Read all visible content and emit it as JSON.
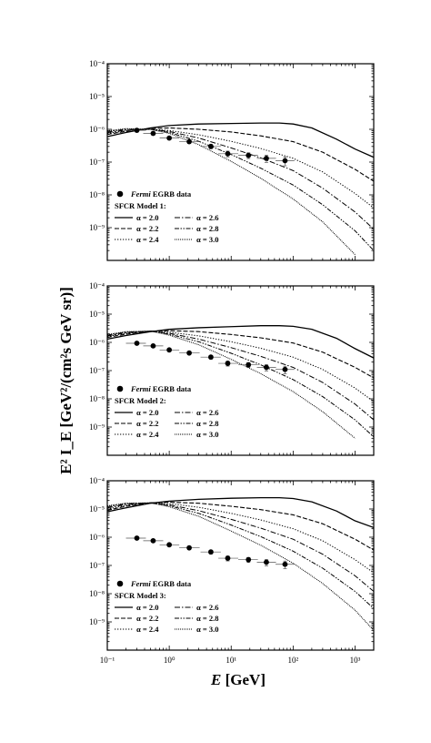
{
  "figure": {
    "xlabel_italic": "E",
    "xlabel_rest": " [GeV]",
    "ylabel": "E² I_E [GeV²/(cm²s GeV sr)]"
  },
  "chart_data": [
    {
      "type": "line",
      "panel": "Model 1",
      "xscale": "log",
      "yscale": "log",
      "xlim": [
        0.1,
        2000
      ],
      "ylim": [
        1e-10,
        0.0001
      ],
      "x_ticks": [
        "10⁻¹",
        "10⁰",
        "10¹",
        "10²",
        "10³"
      ],
      "y_ticks": [
        "10⁻⁹",
        "10⁻⁸",
        "10⁻⁷",
        "10⁻⁶",
        "10⁻⁵",
        "10⁻⁴"
      ],
      "legend": {
        "position": "bottom-left",
        "data_label_italic": "Fermi",
        "data_label_rest": " EGRB data",
        "model_label": "SFCR Model 1:"
      },
      "points": {
        "name": "Fermi EGRB data",
        "x": [
          0.3,
          0.55,
          1.0,
          2.1,
          4.7,
          8.8,
          19,
          37,
          74
        ],
        "y": [
          9.3e-07,
          7.5e-07,
          5.4e-07,
          4.2e-07,
          3e-07,
          1.8e-07,
          1.6e-07,
          1.3e-07,
          1.1e-07
        ],
        "xerr_lo": [
          0.2,
          0.38,
          0.7,
          1.45,
          3.2,
          6.2,
          13,
          26,
          52
        ],
        "xerr_hi": [
          0.42,
          0.8,
          1.45,
          3.1,
          6.8,
          13,
          27,
          53,
          105
        ],
        "yerr_frac": [
          0.12,
          0.12,
          0.12,
          0.12,
          0.15,
          0.2,
          0.2,
          0.25,
          0.3
        ]
      },
      "series": [
        {
          "name": "α = 2.0",
          "x": [
            0.1,
            0.2,
            0.5,
            1,
            3,
            10,
            30,
            60,
            100,
            200,
            500,
            1000,
            2000
          ],
          "y": [
            6e-07,
            8e-07,
            1.1e-06,
            1.3e-06,
            1.45e-06,
            1.5e-06,
            1.55e-06,
            1.55e-06,
            1.45e-06,
            1.1e-06,
            5e-07,
            2.5e-07,
            1.4e-07
          ]
        },
        {
          "name": "α = 2.2",
          "x": [
            0.1,
            0.2,
            0.5,
            1,
            3,
            10,
            30,
            100,
            300,
            1000,
            2000
          ],
          "y": [
            7e-07,
            8.7e-07,
            1.05e-06,
            1.1e-06,
            1e-06,
            8.3e-07,
            6.3e-07,
            4.2e-07,
            2e-07,
            6e-08,
            2.6e-08
          ]
        },
        {
          "name": "α = 2.4",
          "x": [
            0.1,
            0.2,
            0.5,
            1,
            3,
            10,
            30,
            100,
            300,
            1000,
            2000
          ],
          "y": [
            7.5e-07,
            9e-07,
            1e-06,
            9.2e-07,
            6.8e-07,
            4.3e-07,
            2.6e-07,
            1.3e-07,
            5e-08,
            1.1e-08,
            4e-09
          ]
        },
        {
          "name": "α = 2.6",
          "x": [
            0.1,
            0.2,
            0.5,
            1,
            3,
            10,
            30,
            100,
            300,
            1000,
            2000
          ],
          "y": [
            8e-07,
            9.5e-07,
            1e-06,
            8.6e-07,
            5.4e-07,
            2.7e-07,
            1.35e-07,
            5.5e-08,
            1.6e-08,
            3e-09,
            9e-10
          ]
        },
        {
          "name": "α = 2.8",
          "x": [
            0.1,
            0.2,
            0.5,
            1,
            3,
            10,
            30,
            100,
            300,
            1000,
            2000
          ],
          "y": [
            8.5e-07,
            1e-06,
            1e-06,
            8e-07,
            4.3e-07,
            1.7e-07,
            6.5e-08,
            2e-08,
            5e-09,
            8e-10,
            2e-10
          ]
        },
        {
          "name": "α = 3.0",
          "x": [
            0.1,
            0.2,
            0.5,
            1,
            3,
            10,
            30,
            100,
            300,
            1000
          ],
          "y": [
            9e-07,
            1.05e-06,
            1e-06,
            7.5e-07,
            3.4e-07,
            1.05e-07,
            3.2e-08,
            7.5e-09,
            1.5e-09,
            1.5e-10
          ]
        }
      ]
    },
    {
      "type": "line",
      "panel": "Model 2",
      "xscale": "log",
      "yscale": "log",
      "xlim": [
        0.1,
        2000
      ],
      "ylim": [
        1e-10,
        0.0001
      ],
      "x_ticks": [
        "10⁻¹",
        "10⁰",
        "10¹",
        "10²",
        "10³"
      ],
      "y_ticks": [
        "10⁻⁹",
        "10⁻⁸",
        "10⁻⁷",
        "10⁻⁶",
        "10⁻⁵",
        "10⁻⁴"
      ],
      "legend": {
        "position": "bottom-left",
        "data_label_italic": "Fermi",
        "data_label_rest": " EGRB data",
        "model_label": "SFCR Model 2:"
      },
      "points": {
        "name": "Fermi EGRB data",
        "x": [
          0.3,
          0.55,
          1.0,
          2.1,
          4.7,
          8.8,
          19,
          37,
          74
        ],
        "y": [
          9.3e-07,
          7.5e-07,
          5.4e-07,
          4.2e-07,
          3e-07,
          1.8e-07,
          1.6e-07,
          1.3e-07,
          1.1e-07
        ],
        "xerr_lo": [
          0.2,
          0.38,
          0.7,
          1.45,
          3.2,
          6.2,
          13,
          26,
          52
        ],
        "xerr_hi": [
          0.42,
          0.8,
          1.45,
          3.1,
          6.8,
          13,
          27,
          53,
          105
        ],
        "yerr_frac": [
          0.12,
          0.12,
          0.12,
          0.12,
          0.15,
          0.2,
          0.2,
          0.25,
          0.3
        ]
      },
      "series": [
        {
          "name": "α = 2.0",
          "x": [
            0.1,
            0.2,
            0.5,
            1,
            3,
            10,
            30,
            60,
            100,
            200,
            500,
            1000,
            2000
          ],
          "y": [
            1.3e-06,
            1.75e-06,
            2.4e-06,
            2.9e-06,
            3.3e-06,
            3.6e-06,
            3.9e-06,
            3.9e-06,
            3.7e-06,
            2.9e-06,
            1.4e-06,
            6e-07,
            2.8e-07
          ]
        },
        {
          "name": "α = 2.2",
          "x": [
            0.1,
            0.2,
            0.5,
            1,
            3,
            10,
            30,
            100,
            300,
            1000,
            2000
          ],
          "y": [
            1.5e-06,
            1.95e-06,
            2.5e-06,
            2.6e-06,
            2.4e-06,
            1.9e-06,
            1.45e-06,
            9.5e-07,
            4.5e-07,
            1.3e-07,
            5.5e-08
          ]
        },
        {
          "name": "α = 2.4",
          "x": [
            0.1,
            0.2,
            0.5,
            1,
            3,
            10,
            30,
            100,
            300,
            1000,
            2000
          ],
          "y": [
            1.6e-06,
            2.1e-06,
            2.5e-06,
            2.3e-06,
            1.7e-06,
            1.05e-06,
            6.2e-07,
            3e-07,
            1.1e-07,
            2.4e-08,
            8e-09
          ]
        },
        {
          "name": "α = 2.6",
          "x": [
            0.1,
            0.2,
            0.5,
            1,
            3,
            10,
            30,
            100,
            300,
            1000,
            2000
          ],
          "y": [
            1.7e-06,
            2.2e-06,
            2.5e-06,
            2.1e-06,
            1.3e-06,
            6.5e-07,
            3.2e-07,
            1.3e-07,
            3.8e-08,
            6.5e-09,
            1.8e-09
          ]
        },
        {
          "name": "α = 2.8",
          "x": [
            0.1,
            0.2,
            0.5,
            1,
            3,
            10,
            30,
            100,
            300,
            1000,
            2000
          ],
          "y": [
            1.8e-06,
            2.3e-06,
            2.5e-06,
            1.95e-06,
            1.05e-06,
            4.1e-07,
            1.6e-07,
            4.8e-08,
            1.2e-08,
            1.8e-09,
            4.5e-10
          ]
        },
        {
          "name": "α = 3.0",
          "x": [
            0.1,
            0.2,
            0.5,
            1,
            3,
            10,
            30,
            100,
            300,
            1000
          ],
          "y": [
            1.9e-06,
            2.4e-06,
            2.5e-06,
            1.8e-06,
            8.2e-07,
            2.5e-07,
            7.8e-08,
            1.8e-08,
            3.5e-09,
            4e-10
          ]
        }
      ]
    },
    {
      "type": "line",
      "panel": "Model 3",
      "xscale": "log",
      "yscale": "log",
      "xlim": [
        0.1,
        2000
      ],
      "ylim": [
        1e-10,
        0.0001
      ],
      "x_ticks": [
        "10⁻¹",
        "10⁰",
        "10¹",
        "10²",
        "10³"
      ],
      "y_ticks": [
        "10⁻⁹",
        "10⁻⁸",
        "10⁻⁷",
        "10⁻⁶",
        "10⁻⁵",
        "10⁻⁴"
      ],
      "legend": {
        "position": "bottom-left",
        "data_label_italic": "Fermi",
        "data_label_rest": " EGRB data",
        "model_label": "SFCR Model 3:"
      },
      "points": {
        "name": "Fermi EGRB data",
        "x": [
          0.3,
          0.55,
          1.0,
          2.1,
          4.7,
          8.8,
          19,
          37,
          74
        ],
        "y": [
          9.3e-07,
          7.5e-07,
          5.4e-07,
          4.2e-07,
          3e-07,
          1.8e-07,
          1.6e-07,
          1.3e-07,
          1.1e-07
        ],
        "xerr_lo": [
          0.2,
          0.38,
          0.7,
          1.45,
          3.2,
          6.2,
          13,
          26,
          52
        ],
        "xerr_hi": [
          0.42,
          0.8,
          1.45,
          3.1,
          6.8,
          13,
          27,
          53,
          105
        ],
        "yerr_frac": [
          0.12,
          0.12,
          0.12,
          0.12,
          0.15,
          0.2,
          0.2,
          0.25,
          0.3
        ]
      },
      "series": [
        {
          "name": "α = 2.0",
          "x": [
            0.1,
            0.2,
            0.5,
            1,
            3,
            10,
            30,
            60,
            100,
            200,
            500,
            1000,
            2000
          ],
          "y": [
            8e-06,
            1.1e-05,
            1.6e-05,
            1.9e-05,
            2.2e-05,
            2.4e-05,
            2.5e-05,
            2.5e-05,
            2.35e-05,
            1.8e-05,
            8.5e-06,
            3.8e-06,
            2.2e-06
          ]
        },
        {
          "name": "α = 2.2",
          "x": [
            0.1,
            0.2,
            0.5,
            1,
            3,
            10,
            30,
            100,
            300,
            1000,
            2000
          ],
          "y": [
            9e-06,
            1.25e-05,
            1.65e-05,
            1.75e-05,
            1.6e-05,
            1.25e-05,
            9.5e-06,
            6.2e-06,
            3e-06,
            8.5e-07,
            3.5e-07
          ]
        },
        {
          "name": "α = 2.4",
          "x": [
            0.1,
            0.2,
            0.5,
            1,
            3,
            10,
            30,
            100,
            300,
            1000,
            2000
          ],
          "y": [
            1e-05,
            1.35e-05,
            1.65e-05,
            1.55e-05,
            1.15e-05,
            7e-06,
            4.1e-06,
            2e-06,
            7.5e-07,
            1.6e-07,
            5.5e-08
          ]
        },
        {
          "name": "α = 2.6",
          "x": [
            0.1,
            0.2,
            0.5,
            1,
            3,
            10,
            30,
            100,
            300,
            1000,
            2000
          ],
          "y": [
            1.1e-05,
            1.45e-05,
            1.65e-05,
            1.4e-05,
            8.7e-06,
            4.3e-06,
            2.1e-06,
            8.5e-07,
            2.5e-07,
            4.3e-08,
            1.2e-08
          ]
        },
        {
          "name": "α = 2.8",
          "x": [
            0.1,
            0.2,
            0.5,
            1,
            3,
            10,
            30,
            100,
            300,
            1000,
            2000
          ],
          "y": [
            1.2e-05,
            1.55e-05,
            1.65e-05,
            1.3e-05,
            7e-06,
            2.7e-06,
            1.05e-06,
            3.2e-07,
            8e-08,
            1.2e-08,
            3e-09
          ]
        },
        {
          "name": "α = 3.0",
          "x": [
            0.1,
            0.2,
            0.5,
            1,
            3,
            10,
            30,
            100,
            300,
            1000,
            2000
          ],
          "y": [
            1.3e-05,
            1.6e-05,
            1.65e-05,
            1.2e-05,
            5.5e-06,
            1.65e-06,
            5.2e-07,
            1.2e-07,
            2.3e-08,
            2.6e-09,
            5e-10
          ]
        }
      ]
    }
  ]
}
